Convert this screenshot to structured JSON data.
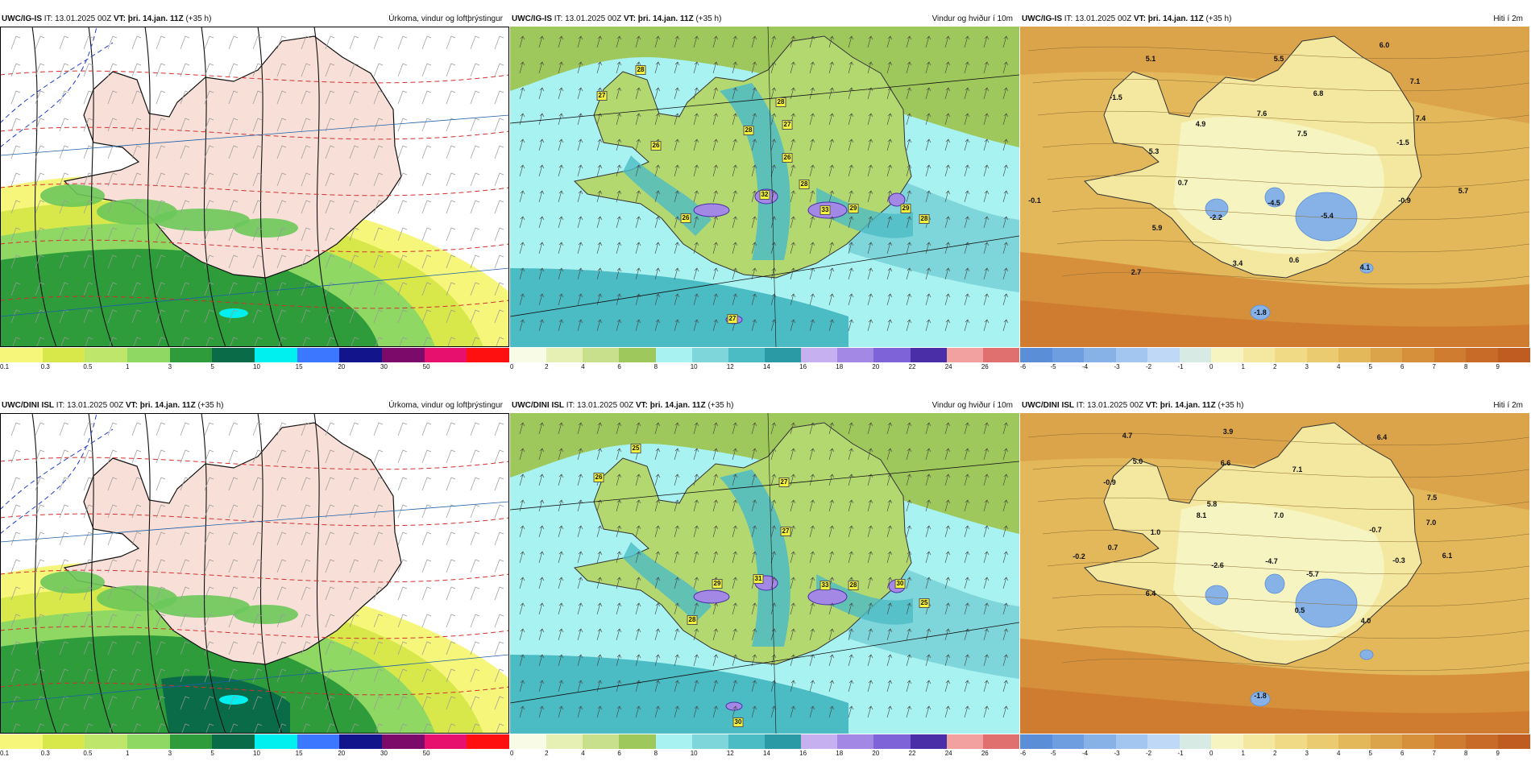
{
  "panels": [
    {
      "id": "p-ig-precip",
      "kind": "precip",
      "model": "UWC/IG-IS",
      "it": "IT: 13.01.2025 00Z",
      "vt_label": "VT:",
      "vt": "þri. 14.jan. 11Z",
      "lead": "(+35 h)",
      "title": "Úrkoma, vindur og loftþrýstingur",
      "colorbar": {
        "ticks": [
          "0.1",
          "0.3",
          "0.5",
          "1",
          "3",
          "5",
          "10",
          "15",
          "20",
          "30",
          "50"
        ],
        "colors": [
          "#f6f67a",
          "#d8e84a",
          "#bde66b",
          "#8fd864",
          "#2e9c3a",
          "#0a6b48",
          "#00f0f0",
          "#3c78ff",
          "#12148c",
          "#7c0a6a",
          "#e8106e",
          "#ff1010"
        ]
      },
      "labels": []
    },
    {
      "id": "p-ig-wind",
      "kind": "wind",
      "model": "UWC/IG-IS",
      "it": "IT: 13.01.2025 00Z",
      "vt_label": "VT:",
      "vt": "þri. 14.jan. 11Z",
      "lead": "(+35 h)",
      "title": "Vindur og hviður í 10m",
      "colorbar": {
        "ticks": [
          "0",
          "2",
          "4",
          "6",
          "8",
          "10",
          "12",
          "14",
          "16",
          "18",
          "20",
          "22",
          "24",
          "26"
        ],
        "colors": [
          "#f8fbe6",
          "#e6f0b4",
          "#c8e08c",
          "#9fc85c",
          "#a8f2f2",
          "#7fd6da",
          "#4cbcc4",
          "#2a9aa4",
          "#c6b0f0",
          "#a488e6",
          "#7e62d8",
          "#4a2ea8",
          "#f2a0a0",
          "#e07070"
        ]
      },
      "labels": [
        "28",
        "27",
        "28",
        "28",
        "27",
        "26",
        "26",
        "28",
        "32",
        "26",
        "33",
        "29",
        "29",
        "28",
        "27"
      ]
    },
    {
      "id": "p-ig-temp",
      "kind": "temp",
      "model": "UWC/IG-IS",
      "it": "IT: 13.01.2025 00Z",
      "vt_label": "VT:",
      "vt": "þri. 14.jan. 11Z",
      "lead": "(+35 h)",
      "title": "Hiti í 2m",
      "colorbar": {
        "ticks": [
          "-6",
          "-5",
          "-4",
          "-3",
          "-2",
          "-1",
          "0",
          "1",
          "2",
          "3",
          "4",
          "5",
          "6",
          "7",
          "8",
          "9"
        ],
        "colors": [
          "#5a8ed6",
          "#6e9ee0",
          "#86b2e8",
          "#a2c6f0",
          "#bed8f6",
          "#d8eae4",
          "#f6f4c0",
          "#f4e8a0",
          "#f0da86",
          "#eacb70",
          "#e2b85a",
          "#dca44a",
          "#d6903c",
          "#cf7c30",
          "#c86a28",
          "#c05c22"
        ]
      },
      "labels": [
        "5.1",
        "-1.5",
        "5.5",
        "6.0",
        "7.1",
        "6.8",
        "7.6",
        "7.5",
        "7.4",
        "4.9",
        "5.3",
        "-1.5",
        "0.7",
        "-0.1",
        "-4.5",
        "-2.2",
        "-0.9",
        "5.7",
        "-5.4",
        "5.9",
        "3.4",
        "0.6",
        "2.7",
        "4.1",
        "-1.8"
      ]
    },
    {
      "id": "p-dini-precip",
      "kind": "precip",
      "model": "UWC/DINI ISL",
      "it": "IT: 13.01.2025 00Z",
      "vt_label": "VT:",
      "vt": "þri. 14.jan. 11Z",
      "lead": "(+35 h)",
      "title": "Úrkoma, vindur og loftþrýstingur",
      "colorbar": {
        "ticks": [
          "0.1",
          "0.3",
          "0.5",
          "1",
          "3",
          "5",
          "10",
          "15",
          "20",
          "30",
          "50"
        ],
        "colors": [
          "#f6f67a",
          "#d8e84a",
          "#bde66b",
          "#8fd864",
          "#2e9c3a",
          "#0a6b48",
          "#00f0f0",
          "#3c78ff",
          "#12148c",
          "#7c0a6a",
          "#e8106e",
          "#ff1010"
        ]
      },
      "labels": []
    },
    {
      "id": "p-dini-wind",
      "kind": "wind",
      "model": "UWC/DINI ISL",
      "it": "IT: 13.01.2025 00Z",
      "vt_label": "VT:",
      "vt": "þri. 14.jan. 11Z",
      "lead": "(+35 h)",
      "title": "Vindur og hviður í 10m",
      "colorbar": {
        "ticks": [
          "0",
          "2",
          "4",
          "6",
          "8",
          "10",
          "12",
          "14",
          "16",
          "18",
          "20",
          "22",
          "24",
          "26"
        ],
        "colors": [
          "#f8fbe6",
          "#e6f0b4",
          "#c8e08c",
          "#9fc85c",
          "#a8f2f2",
          "#7fd6da",
          "#4cbcc4",
          "#2a9aa4",
          "#c6b0f0",
          "#a488e6",
          "#7e62d8",
          "#4a2ea8",
          "#f2a0a0",
          "#e07070"
        ]
      },
      "labels": [
        "25",
        "26",
        "27",
        "27",
        "28",
        "29",
        "31",
        "33",
        "28",
        "30",
        "25",
        "30"
      ]
    },
    {
      "id": "p-dini-temp",
      "kind": "temp",
      "model": "UWC/DINI ISL",
      "it": "IT: 13.01.2025 00Z",
      "vt_label": "VT:",
      "vt": "þri. 14.jan. 11Z",
      "lead": "(+35 h)",
      "title": "Hiti í 2m",
      "colorbar": {
        "ticks": [
          "-6",
          "-5",
          "-4",
          "-3",
          "-2",
          "-1",
          "0",
          "1",
          "2",
          "3",
          "4",
          "5",
          "6",
          "7",
          "8",
          "9"
        ],
        "colors": [
          "#5a8ed6",
          "#6e9ee0",
          "#86b2e8",
          "#a2c6f0",
          "#bed8f6",
          "#d8eae4",
          "#f6f4c0",
          "#f4e8a0",
          "#f0da86",
          "#eacb70",
          "#e2b85a",
          "#dca44a",
          "#d6903c",
          "#cf7c30",
          "#c86a28",
          "#c05c22"
        ]
      },
      "labels": [
        "4.7",
        "3.9",
        "6.4",
        "5.0",
        "-0.9",
        "6.6",
        "7.1",
        "5.8",
        "8.1",
        "7.0",
        "7.5",
        "7.0",
        "1.0",
        "-0.7",
        "0.7",
        "-0.2",
        "-2.6",
        "-4.7",
        "-5.7",
        "-0.3",
        "6.1",
        "6.4",
        "0.5",
        "4.0",
        "-1.8"
      ]
    }
  ]
}
